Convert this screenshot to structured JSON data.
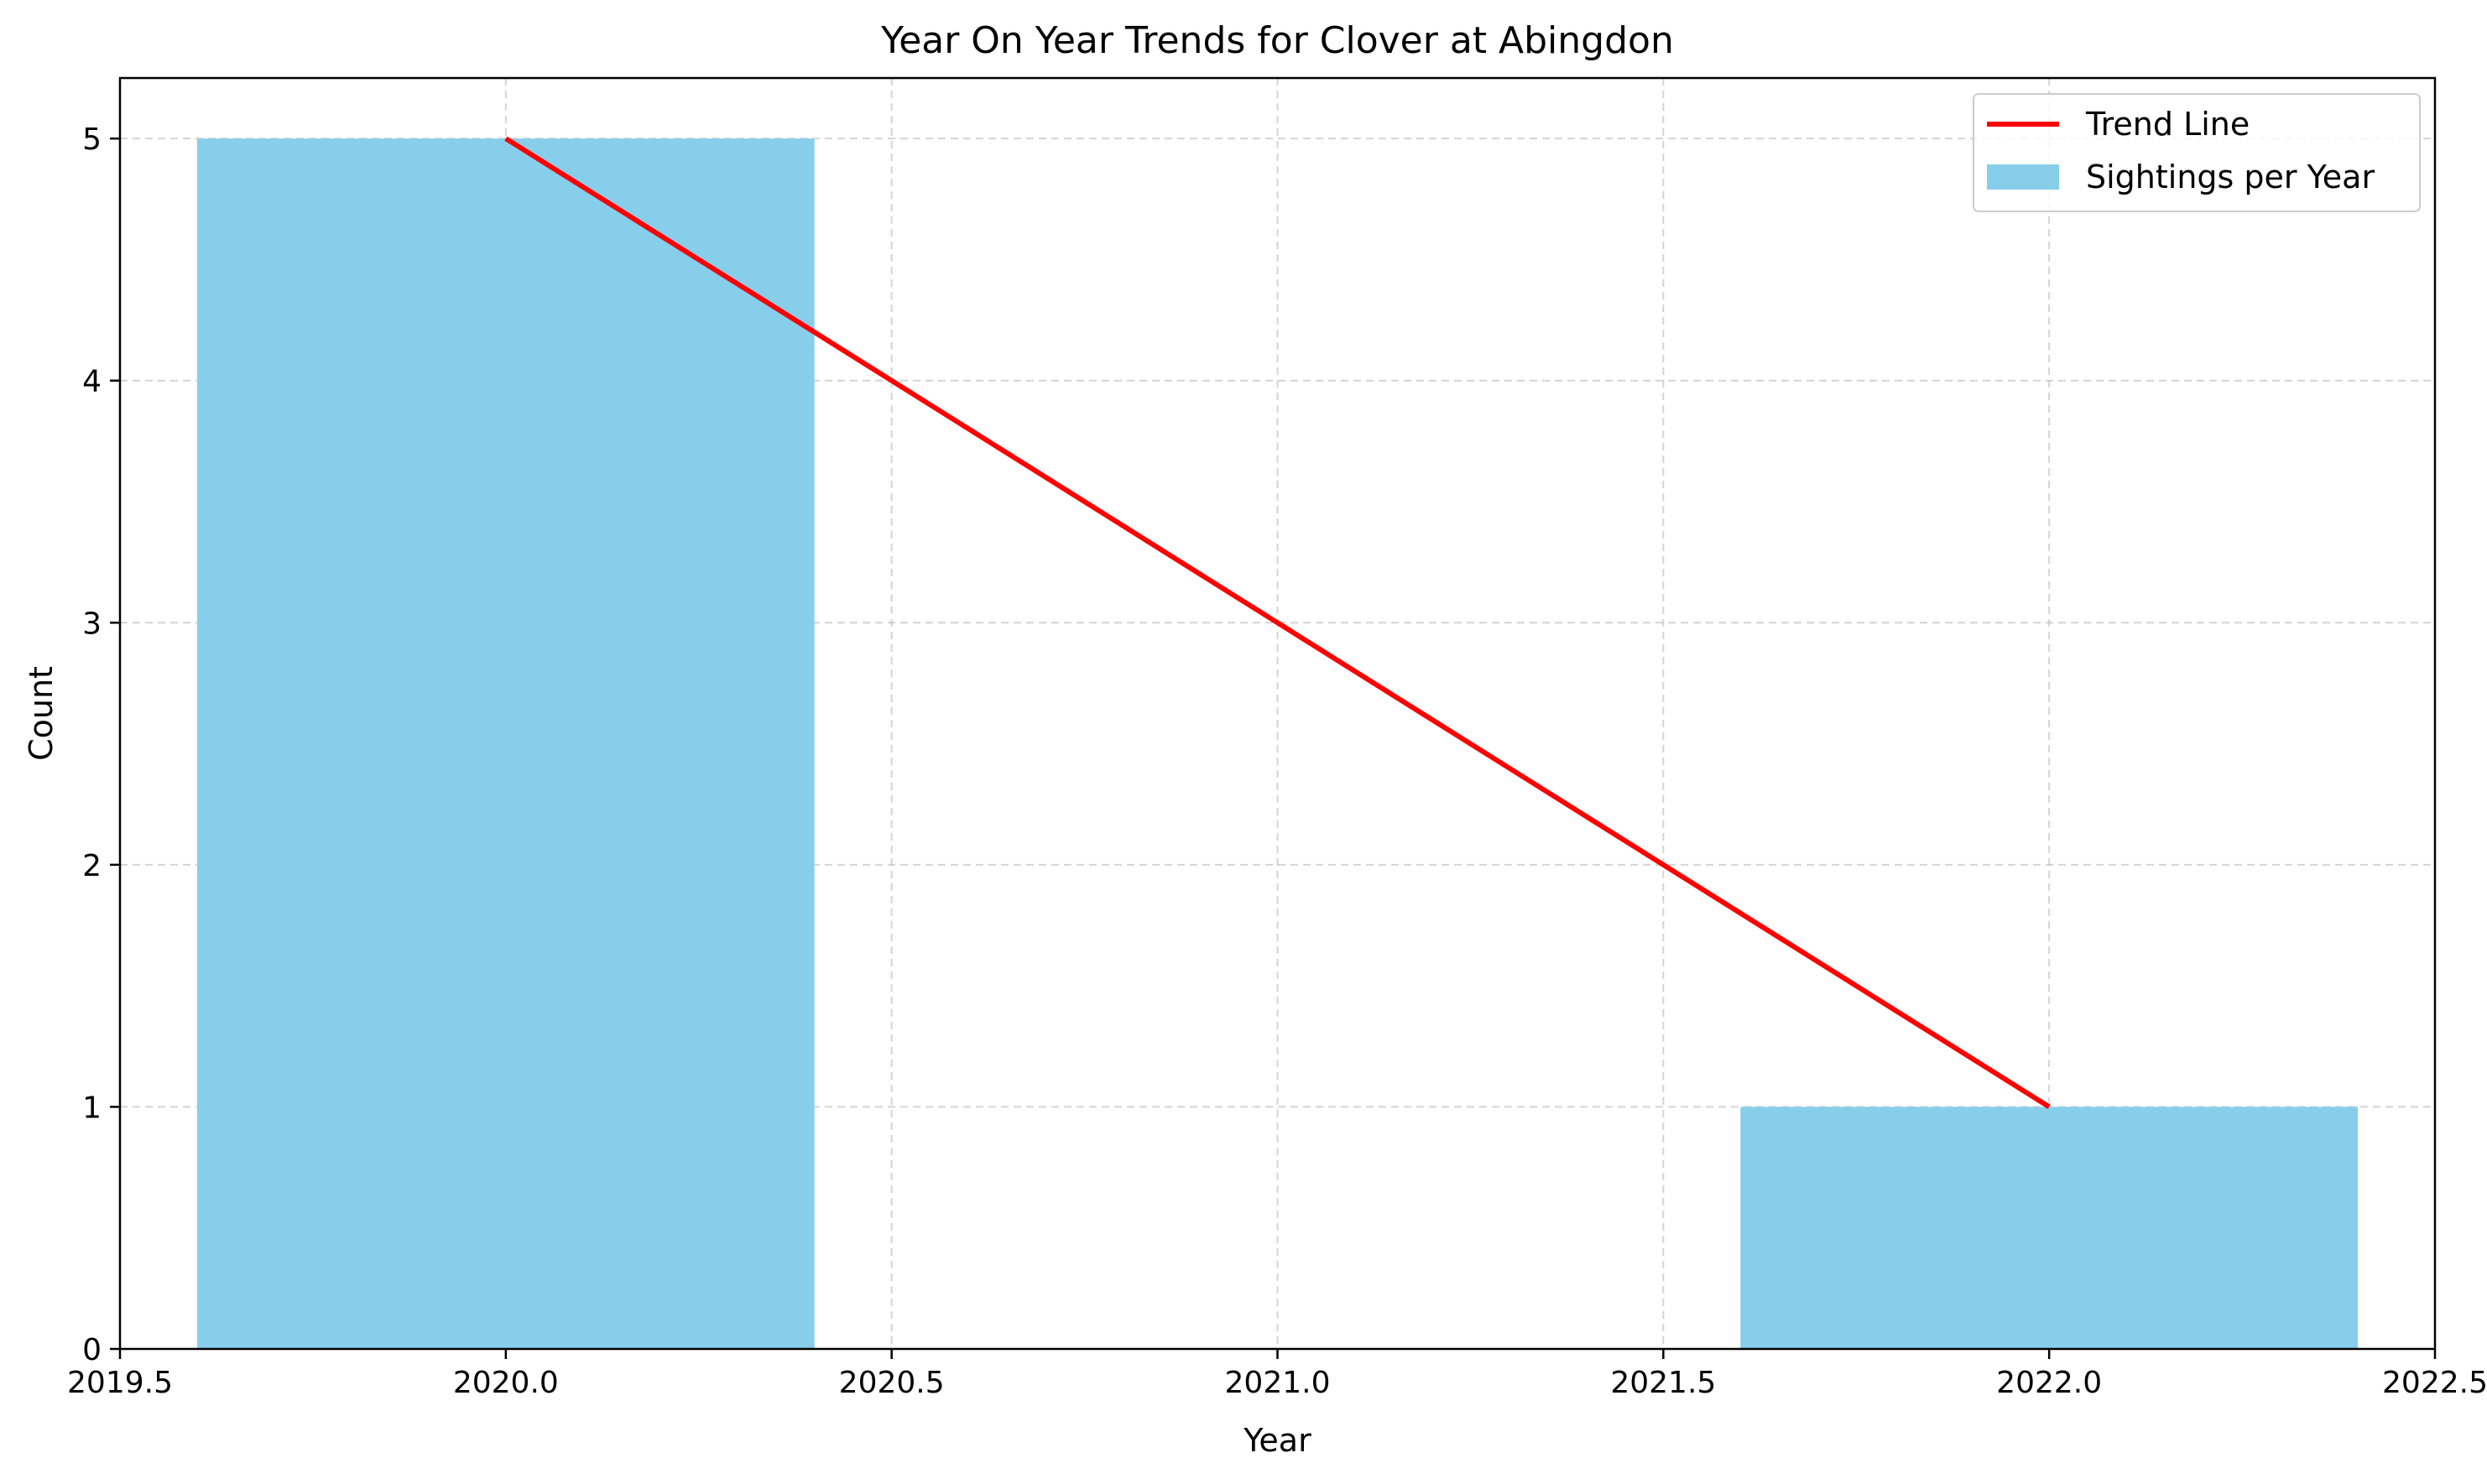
{
  "chart_data": {
    "type": "bar",
    "title": "Year On Year Trends for Clover at Abingdon",
    "xlabel": "Year",
    "ylabel": "Count",
    "xlim": [
      2019.5,
      2022.5
    ],
    "ylim": [
      0,
      5.25
    ],
    "grid": true,
    "legend_position": "top-right",
    "x_ticks": [
      "2019.5",
      "2020.0",
      "2020.5",
      "2021.0",
      "2021.5",
      "2022.0",
      "2022.5"
    ],
    "y_ticks": [
      "0",
      "1",
      "2",
      "3",
      "4",
      "5"
    ],
    "bar_width": 0.8,
    "series": [
      {
        "name": "Sightings per Year",
        "kind": "bar",
        "color": "#87CEEB",
        "x": [
          2020,
          2022
        ],
        "values": [
          5,
          1
        ]
      },
      {
        "name": "Trend Line",
        "kind": "line",
        "color": "#FF0000",
        "x": [
          2020,
          2022
        ],
        "values": [
          5,
          1
        ]
      }
    ]
  }
}
